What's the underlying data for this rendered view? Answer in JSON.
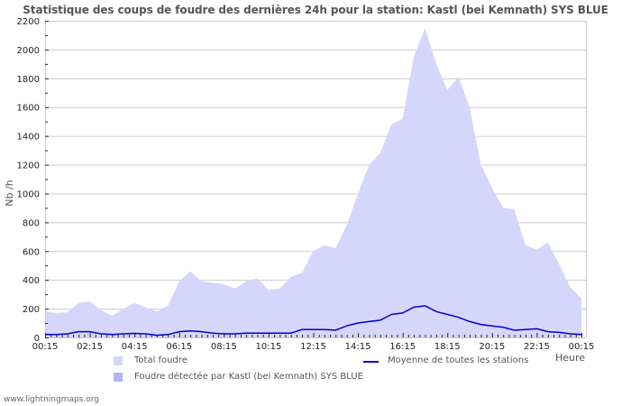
{
  "title": "Statistique des coups de foudre des dernières 24h pour la station: Kastl (bei Kemnath) SYS BLUE",
  "footer": "www.lightningmaps.org",
  "colors": {
    "total_fill": "#d6d6fc",
    "station_fill": "#b4b4f4",
    "average_line": "#0000cc",
    "grid": "#cccccc"
  },
  "chart_data": {
    "type": "area",
    "title": "Statistique des coups de foudre des dernières 24h pour la station: Kastl (bei Kemnath) SYS BLUE",
    "xlabel": "Heure",
    "ylabel": "Nb /h",
    "ylim": [
      0,
      2200
    ],
    "yticks": [
      0,
      200,
      400,
      600,
      800,
      1000,
      1200,
      1400,
      1600,
      1800,
      2000,
      2200
    ],
    "xtick_labels": [
      "00:15",
      "02:15",
      "04:15",
      "06:15",
      "08:15",
      "10:15",
      "12:15",
      "14:15",
      "16:15",
      "18:15",
      "20:15",
      "22:15",
      "00:15"
    ],
    "grid": true,
    "legend_position": "bottom",
    "x": [
      "00:15",
      "00:45",
      "01:15",
      "01:45",
      "02:15",
      "02:45",
      "03:15",
      "03:45",
      "04:15",
      "04:45",
      "05:15",
      "05:45",
      "06:15",
      "06:45",
      "07:15",
      "07:45",
      "08:15",
      "08:45",
      "09:15",
      "09:45",
      "10:15",
      "10:45",
      "11:15",
      "11:45",
      "12:15",
      "12:45",
      "13:15",
      "13:45",
      "14:15",
      "14:45",
      "15:15",
      "15:45",
      "16:15",
      "16:45",
      "17:15",
      "17:45",
      "18:15",
      "18:45",
      "19:15",
      "19:45",
      "20:15",
      "20:45",
      "21:15",
      "21:45",
      "22:15",
      "22:45",
      "23:15",
      "23:45",
      "00:15"
    ],
    "series": [
      {
        "name": "Total foudre",
        "values": [
          180,
          170,
          175,
          240,
          250,
          190,
          150,
          200,
          240,
          210,
          180,
          220,
          390,
          460,
          390,
          380,
          370,
          340,
          390,
          410,
          330,
          340,
          420,
          450,
          600,
          640,
          620,
          780,
          1000,
          1200,
          1280,
          1480,
          1520,
          1950,
          2150,
          1900,
          1720,
          1810,
          1600,
          1200,
          1040,
          900,
          890,
          640,
          610,
          660,
          510,
          350,
          270
        ]
      },
      {
        "name": "Foudre détectée par Kastl (bei Kemnath) SYS BLUE",
        "values": [
          0,
          0,
          0,
          0,
          0,
          0,
          0,
          0,
          0,
          0,
          0,
          0,
          0,
          0,
          0,
          0,
          0,
          0,
          0,
          0,
          0,
          0,
          0,
          0,
          0,
          0,
          0,
          0,
          0,
          0,
          0,
          0,
          0,
          0,
          0,
          0,
          0,
          0,
          0,
          0,
          0,
          0,
          0,
          0,
          0,
          0,
          0,
          0,
          0
        ]
      },
      {
        "name": "Moyenne de toutes les stations",
        "values": [
          20,
          20,
          25,
          40,
          40,
          25,
          20,
          25,
          28,
          25,
          15,
          20,
          40,
          45,
          40,
          30,
          25,
          25,
          30,
          30,
          30,
          30,
          30,
          55,
          55,
          55,
          50,
          80,
          100,
          110,
          120,
          160,
          170,
          210,
          220,
          180,
          160,
          140,
          110,
          90,
          80,
          70,
          50,
          55,
          60,
          40,
          35,
          25,
          20
        ]
      }
    ]
  },
  "axes": {
    "y_title": "Nb /h",
    "x_unit": "Heure"
  },
  "legend": [
    {
      "label": "Total foudre",
      "kind": "swatch",
      "color": "#d6d6fc"
    },
    {
      "label": "Foudre détectée par Kastl (bei Kemnath) SYS BLUE",
      "kind": "swatch",
      "color": "#b4b4f4"
    },
    {
      "label": "Moyenne de toutes les stations",
      "kind": "line",
      "color": "#0000cc"
    }
  ]
}
